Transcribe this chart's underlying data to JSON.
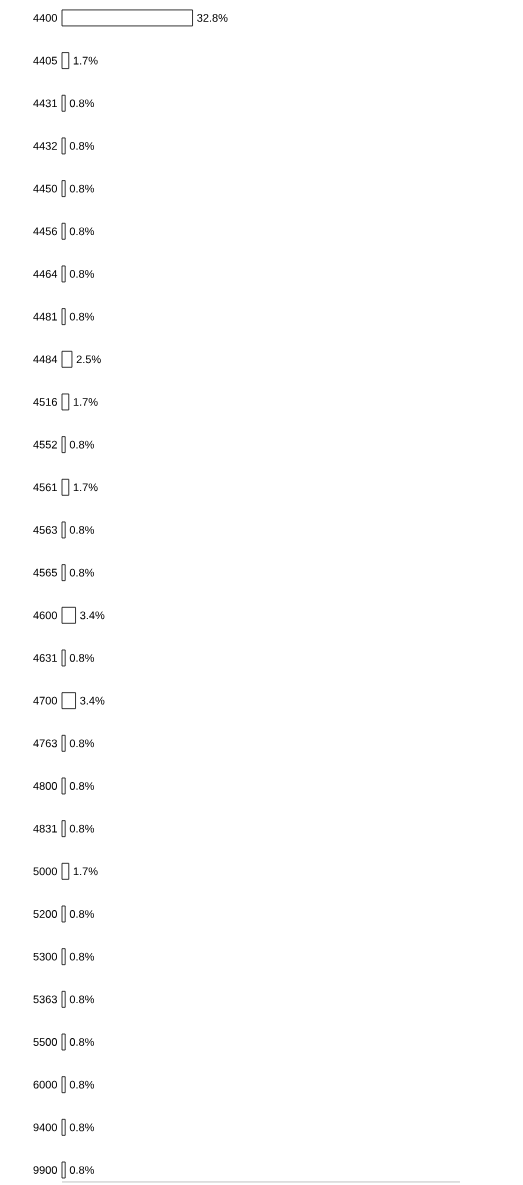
{
  "chart_data": {
    "type": "bar",
    "orientation": "horizontal",
    "xlim": [
      0,
      100
    ],
    "categories": [
      "4400",
      "4405",
      "4431",
      "4432",
      "4450",
      "4456",
      "4464",
      "4481",
      "4484",
      "4516",
      "4552",
      "4561",
      "4563",
      "4565",
      "4600",
      "4631",
      "4700",
      "4763",
      "4800",
      "4831",
      "5000",
      "5200",
      "5300",
      "5363",
      "5500",
      "6000",
      "9400",
      "9900"
    ],
    "series": [
      {
        "color": "#ffffff",
        "values": [
          32.8,
          1.7,
          0.8,
          0.8,
          0.8,
          0.8,
          0.8,
          0.8,
          2.5,
          1.7,
          0.8,
          1.7,
          0.8,
          0.8,
          3.4,
          0.8,
          3.4,
          0.8,
          0.8,
          0.8,
          1.7,
          0.8,
          0.8,
          0.8,
          0.8,
          0.8,
          0.8,
          0.8
        ],
        "value_labels": [
          "32.8%",
          "1.7%",
          "0.8%",
          "0.8%",
          "0.8%",
          "0.8%",
          "0.8%",
          "0.8%",
          "2.5%",
          "1.7%",
          "0.8%",
          "1.7%",
          "0.8%",
          "0.8%",
          "3.4%",
          "0.8%",
          "3.4%",
          "0.8%",
          "0.8%",
          "0.8%",
          "1.7%",
          "0.8%",
          "0.8%",
          "0.8%",
          "0.8%",
          "0.8%",
          "0.8%",
          "0.8%"
        ]
      }
    ],
    "tick_labels": "y"
  }
}
